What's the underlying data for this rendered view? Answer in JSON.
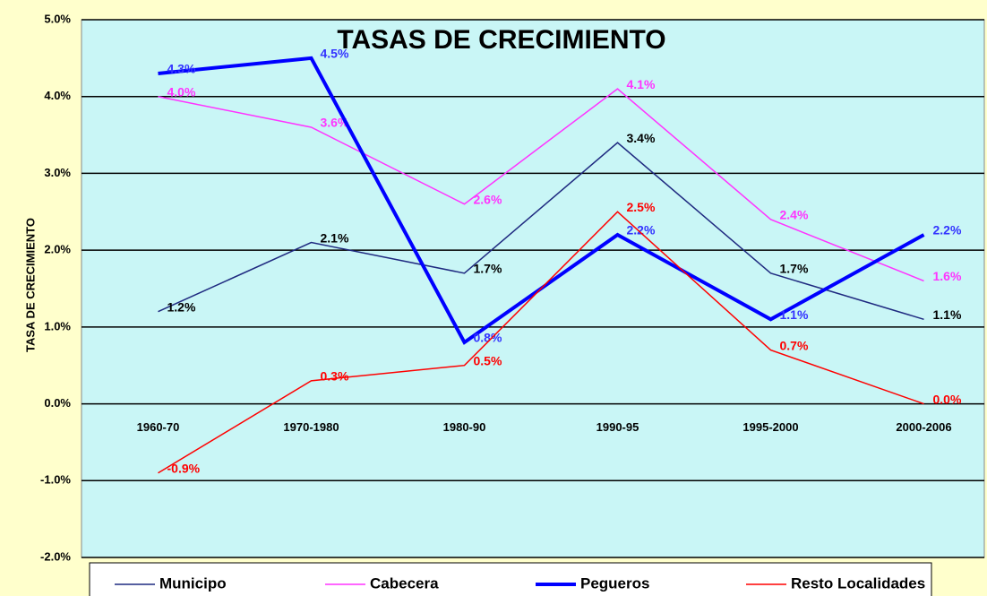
{
  "chart_data": {
    "type": "line",
    "title": "TASAS DE CRECIMIENTO",
    "y_label": "TASA DE CRECIMIENTO",
    "categories": [
      "1960-70",
      "1970-1980",
      "1980-90",
      "1990-95",
      "1995-2000",
      "2000-2006"
    ],
    "series": [
      {
        "name": "Municipo",
        "color": "#1f2a80",
        "label_color": "#000000",
        "width": 1.5,
        "values": [
          1.2,
          2.1,
          1.7,
          3.4,
          1.7,
          1.1
        ],
        "value_labels": [
          "1.2%",
          "2.1%",
          "1.7%",
          "3.4%",
          "1.7%",
          "1.1%"
        ]
      },
      {
        "name": "Cabecera",
        "color": "#ff33ff",
        "label_color": "#ff33ff",
        "width": 1.5,
        "values": [
          4.0,
          3.6,
          2.6,
          4.1,
          2.4,
          1.6
        ],
        "value_labels": [
          "4.0%",
          "3.6%",
          "2.6%",
          "4.1%",
          "2.4%",
          "1.6%"
        ]
      },
      {
        "name": "Pegueros",
        "color": "#0000ff",
        "label_color": "#3333ff",
        "width": 4,
        "values": [
          4.3,
          4.5,
          0.8,
          2.2,
          1.1,
          2.2
        ],
        "value_labels": [
          "4.3%",
          "4.5%",
          "0.8%",
          "2.2%",
          "1.1%",
          "2.2%"
        ]
      },
      {
        "name": "Resto Localidades",
        "color": "#ff0000",
        "label_color": "#ff0000",
        "width": 1.5,
        "values": [
          -0.9,
          0.3,
          0.5,
          2.5,
          0.7,
          0.0
        ],
        "value_labels": [
          "-0.9%",
          "0.3%",
          "0.5%",
          "2.5%",
          "0.7%",
          "0.0%"
        ]
      }
    ],
    "ylim": [
      -2,
      5
    ],
    "yticks": [
      {
        "value": -2,
        "label": "-2.0%"
      },
      {
        "value": -1,
        "label": "-1.0%"
      },
      {
        "value": 0,
        "label": "0.0%"
      },
      {
        "value": 1,
        "label": "1.0%"
      },
      {
        "value": 2,
        "label": "2.0%"
      },
      {
        "value": 3,
        "label": "3.0%"
      },
      {
        "value": 4,
        "label": "4.0%"
      },
      {
        "value": 5,
        "label": "5.0%"
      }
    ],
    "grid": true,
    "legend": "bottom"
  }
}
